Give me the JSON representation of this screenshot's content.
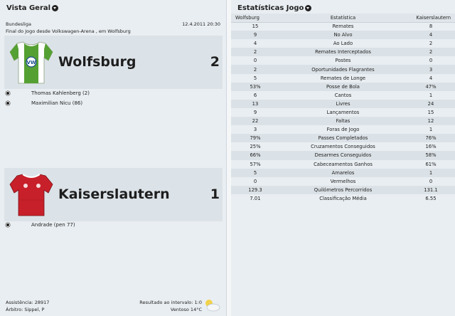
{
  "left": {
    "title": "Vista Geral",
    "competition": "Bundesliga",
    "date": "12.4.2011 20:30",
    "venue": "Final do Jogo desde Volkswagen-Arena , em Wolfsburg",
    "home": {
      "name": "Wolfsburg",
      "score": "2",
      "shirt_colors": {
        "body": "#ffffff",
        "sleeves": "#55a032"
      },
      "scorers": [
        "Thomas Kahlenberg (2)",
        "Maximilian Nicu (86)"
      ]
    },
    "away": {
      "name": "Kaiserslautern",
      "score": "1",
      "shirt_colors": {
        "body": "#c8202a",
        "sleeves": "#c8202a"
      },
      "scorers": [
        "Andrade (pen 77)"
      ]
    },
    "attendance": "Assistência: 28917",
    "referee": "Árbitro: Sippel, P",
    "halftime": "Resultado ao intervalo: 1:0",
    "weather": "Ventoso 14°C"
  },
  "right": {
    "title": "Estatísticas Jogo",
    "headers": {
      "home": "Wolfsburg",
      "stat": "Estatística",
      "away": "Kaiserslautern"
    },
    "rows": [
      {
        "home": "15",
        "stat": "Remates",
        "away": "8"
      },
      {
        "home": "9",
        "stat": "No Alvo",
        "away": "4"
      },
      {
        "home": "4",
        "stat": "Ao Lado",
        "away": "2"
      },
      {
        "home": "2",
        "stat": "Remates Interceptados",
        "away": "2"
      },
      {
        "home": "0",
        "stat": "Postes",
        "away": "0"
      },
      {
        "home": "2",
        "stat": "Oportunidades Flagrantes",
        "away": "3"
      },
      {
        "home": "5",
        "stat": "Remates de Longe",
        "away": "4"
      },
      {
        "home": "53%",
        "stat": "Posse de Bola",
        "away": "47%"
      },
      {
        "home": "6",
        "stat": "Cantos",
        "away": "1"
      },
      {
        "home": "13",
        "stat": "Livres",
        "away": "24"
      },
      {
        "home": "9",
        "stat": "Lançamentos",
        "away": "15"
      },
      {
        "home": "22",
        "stat": "Faltas",
        "away": "12"
      },
      {
        "home": "3",
        "stat": "Foras de Jogo",
        "away": "1"
      },
      {
        "home": "79%",
        "stat": "Passes Completados",
        "away": "76%"
      },
      {
        "home": "25%",
        "stat": "Cruzamentos Conseguidos",
        "away": "16%"
      },
      {
        "home": "66%",
        "stat": "Desarmes Conseguidos",
        "away": "58%"
      },
      {
        "home": "57%",
        "stat": "Cabeceamentos Ganhos",
        "away": "61%"
      },
      {
        "home": "5",
        "stat": "Amarelos",
        "away": "1"
      },
      {
        "home": "0",
        "stat": "Vermelhos",
        "away": "0"
      },
      {
        "home": "129.3",
        "stat": "Quilómetros Percorridos",
        "away": "131.1"
      },
      {
        "home": "7.01",
        "stat": "Classificação Média",
        "away": "6.55"
      }
    ]
  }
}
